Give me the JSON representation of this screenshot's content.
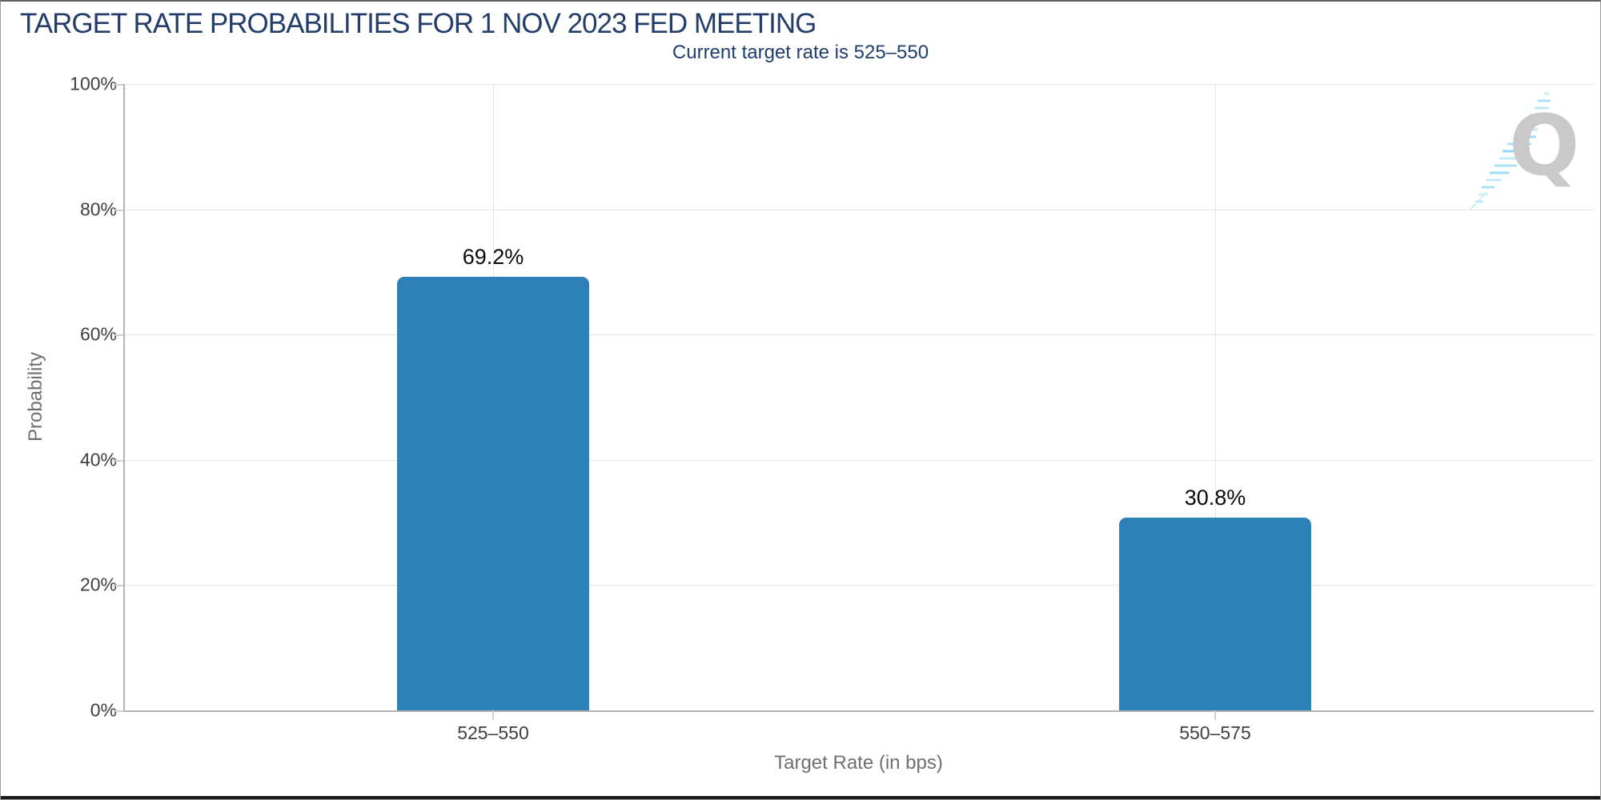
{
  "header": {
    "title": "TARGET RATE PROBABILITIES FOR 1 NOV 2023 FED MEETING",
    "subtitle": "Current target rate is 525–550"
  },
  "watermark": {
    "letter": "Q"
  },
  "colors": {
    "bar": "#2e80b9",
    "title_navy": "#243e6b",
    "subtitle_navy": "#1f3d6d",
    "logo_gray": "#c9c9c9",
    "logo_blue": "#a8e2f6",
    "gridline": "#e4e4e4",
    "axis_line": "#b2b2b2",
    "tick_text": "#3f3f3f",
    "axis_title_text": "#6f6f6f"
  },
  "chart_data": {
    "type": "bar",
    "title": "TARGET RATE PROBABILITIES FOR 1 NOV 2023 FED MEETING",
    "subtitle": "Current target rate is 525–550",
    "categories": [
      "525–550",
      "550–575"
    ],
    "values": [
      69.2,
      30.8
    ],
    "value_labels": [
      "69.2%",
      "30.8%"
    ],
    "xlabel": "Target Rate (in bps)",
    "ylabel": "Probability",
    "yticks": [
      "0%",
      "20%",
      "40%",
      "60%",
      "80%",
      "100%"
    ],
    "ylim": [
      0,
      100
    ],
    "grid": true,
    "legend": false,
    "bar_color": "#2e80b9"
  }
}
